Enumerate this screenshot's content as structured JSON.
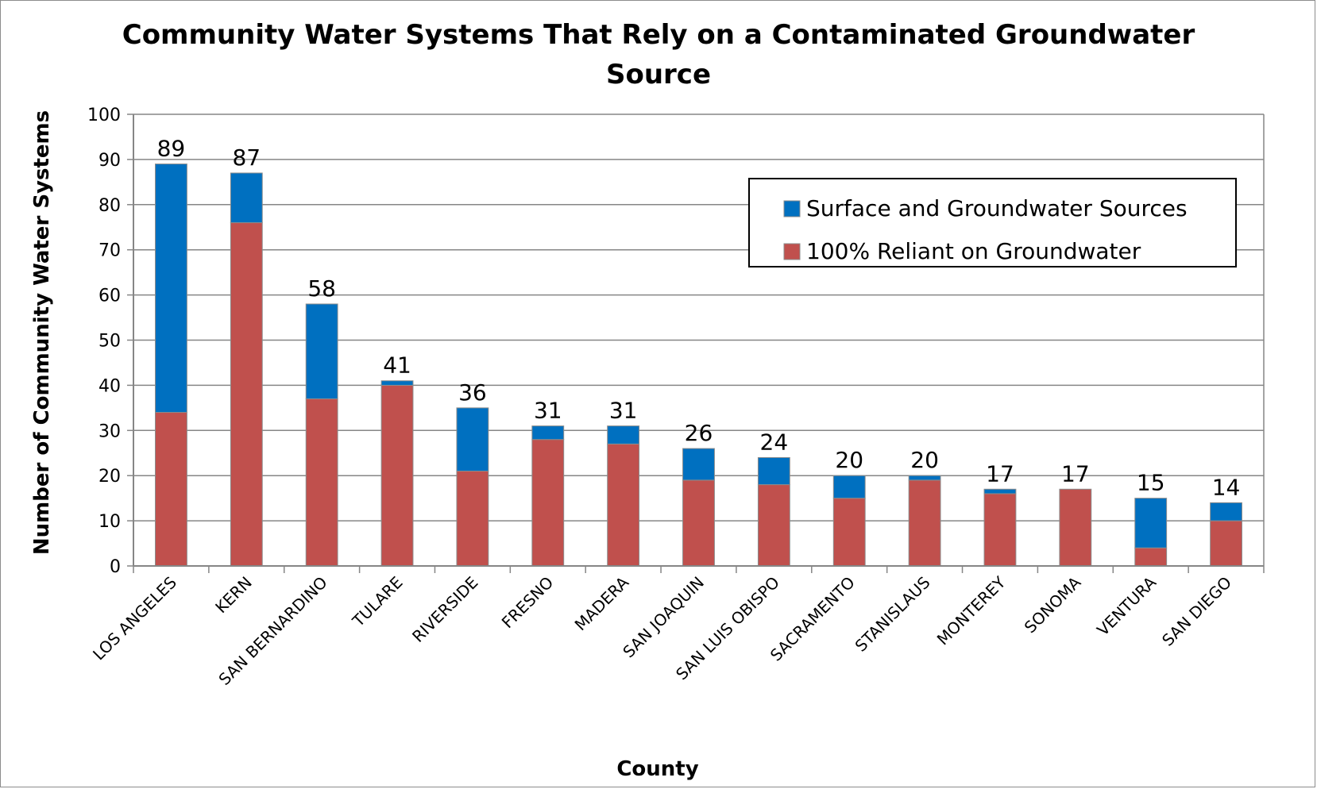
{
  "chart_data": {
    "type": "bar",
    "stacked": true,
    "title_lines": [
      "Community Water Systems That Rely on a Contaminated Groundwater",
      "Source"
    ],
    "xlabel": "County",
    "ylabel": "Number of Community Water Systems",
    "ylim": [
      0,
      100
    ],
    "ytick_step": 10,
    "grid": true,
    "legend_position": "top-right",
    "categories": [
      "LOS ANGELES",
      "KERN",
      "SAN BERNARDINO",
      "TULARE",
      "RIVERSIDE",
      "FRESNO",
      "MADERA",
      "SAN JOAQUIN",
      "SAN LUIS OBISPO",
      "SACRAMENTO",
      "STANISLAUS",
      "MONTEREY",
      "SONOMA",
      "VENTURA",
      "SAN DIEGO"
    ],
    "series": [
      {
        "name": "100% Reliant on Groundwater",
        "color": "#c0504d",
        "values": [
          34,
          76,
          37,
          40,
          21,
          28,
          27,
          19,
          18,
          15,
          19,
          16,
          17,
          4,
          10
        ]
      },
      {
        "name": "Surface and Groundwater Sources",
        "color": "#0070c0",
        "values": [
          55,
          11,
          21,
          1,
          14,
          3,
          4,
          7,
          6,
          5,
          1,
          1,
          0,
          11,
          4
        ]
      }
    ],
    "totals": [
      "89",
      "87",
      "58",
      "41",
      "36",
      "31",
      "31",
      "26",
      "24",
      "20",
      "20",
      "17",
      "17",
      "15",
      "14"
    ],
    "legend_order": [
      "Surface and Groundwater Sources",
      "100% Reliant on Groundwater"
    ]
  }
}
